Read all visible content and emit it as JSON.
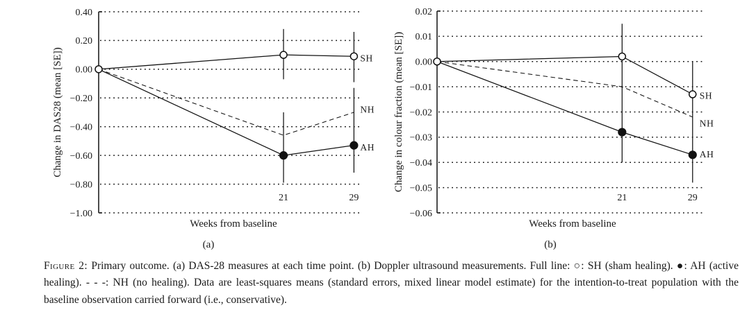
{
  "figure": {
    "caption": {
      "label": "Figure 2:",
      "text": " Primary outcome. (a) DAS-28 measures at each time point. (b) Doppler ultrasound measurements. Full line: ○: SH (sham healing). ●: AH (active healing). - - -: NH (no healing). Data are least-squares means (standard errors, mixed linear model estimate) for the intention-to-treat population with the baseline observation carried forward (i.e., conservative)."
    }
  },
  "colors": {
    "ink": "#1a1a1a",
    "background": "#ffffff"
  },
  "chart_data": [
    {
      "id": "a",
      "type": "line",
      "sublabel": "(a)",
      "title": "",
      "xlabel": "Weeks from baseline",
      "ylabel": "Change in DAS28 (mean [SE])",
      "xlim": [
        0,
        29.6
      ],
      "ylim": [
        -1.0,
        0.4
      ],
      "grid": "dotted-horizontal",
      "legend_position": "right-of-last-point",
      "x_ticks": [
        {
          "value": 21,
          "label": "21"
        },
        {
          "value": 29,
          "label": "29"
        }
      ],
      "y_ticks": [
        {
          "value": 0.4,
          "label": "0.40"
        },
        {
          "value": 0.2,
          "label": "0.20"
        },
        {
          "value": 0.0,
          "label": "0.00"
        },
        {
          "value": -0.2,
          "label": "−0.20"
        },
        {
          "value": -0.4,
          "label": "−0.40"
        },
        {
          "value": -0.6,
          "label": "−0.60"
        },
        {
          "value": -0.8,
          "label": "−0.80"
        },
        {
          "value": -1.0,
          "label": "−1.00"
        }
      ],
      "series": [
        {
          "name": "SH",
          "label": "SH",
          "description": "sham healing",
          "line": "solid",
          "marker": "open-circle",
          "markers_at": [
            0,
            21,
            29
          ],
          "x": [
            0,
            21,
            29
          ],
          "y": [
            0.0,
            0.1,
            0.09
          ]
        },
        {
          "name": "NH",
          "label": "NH",
          "description": "no healing",
          "line": "dashed",
          "marker": "none",
          "markers_at": [],
          "x": [
            0,
            21,
            29
          ],
          "y": [
            0.0,
            -0.46,
            -0.3
          ]
        },
        {
          "name": "AH",
          "label": "AH",
          "description": "active healing",
          "line": "solid",
          "marker": "filled-circle",
          "markers_at": [
            21,
            29
          ],
          "x": [
            0,
            21,
            29
          ],
          "y": [
            0.0,
            -0.6,
            -0.53
          ]
        }
      ],
      "error_segments": [
        {
          "x": 21,
          "from": 0.28,
          "to": -0.07
        },
        {
          "x": 21,
          "from": -0.3,
          "to": -0.79
        },
        {
          "x": 29,
          "from": 0.26,
          "to": -0.09
        },
        {
          "x": 29,
          "from": -0.13,
          "to": -0.72
        }
      ]
    },
    {
      "id": "b",
      "type": "line",
      "sublabel": "(b)",
      "title": "",
      "xlabel": "Weeks from baseline",
      "ylabel": "Change in colour fraction (mean [SE])",
      "xlim": [
        0,
        30.2
      ],
      "ylim": [
        -0.06,
        0.02
      ],
      "grid": "dotted-horizontal",
      "legend_position": "right-of-last-point",
      "x_ticks": [
        {
          "value": 21,
          "label": "21"
        },
        {
          "value": 29,
          "label": "29"
        }
      ],
      "y_ticks": [
        {
          "value": 0.02,
          "label": "0.02"
        },
        {
          "value": 0.01,
          "label": "0.01"
        },
        {
          "value": 0.0,
          "label": "0.00"
        },
        {
          "value": -0.01,
          "label": "−0.01"
        },
        {
          "value": -0.02,
          "label": "−0.02"
        },
        {
          "value": -0.03,
          "label": "−0.03"
        },
        {
          "value": -0.04,
          "label": "−0.04"
        },
        {
          "value": -0.05,
          "label": "−0.05"
        },
        {
          "value": -0.06,
          "label": "−0.06"
        }
      ],
      "series": [
        {
          "name": "SH",
          "label": "SH",
          "description": "sham healing",
          "line": "solid",
          "marker": "open-circle",
          "markers_at": [
            0,
            21,
            29
          ],
          "x": [
            0,
            21,
            29
          ],
          "y": [
            0.0,
            0.002,
            -0.013
          ]
        },
        {
          "name": "NH",
          "label": "NH",
          "description": "no healing",
          "line": "dashed",
          "marker": "none",
          "markers_at": [],
          "x": [
            0,
            21,
            29
          ],
          "y": [
            0.0,
            -0.01,
            -0.022
          ]
        },
        {
          "name": "AH",
          "label": "AH",
          "description": "active healing",
          "line": "solid",
          "marker": "filled-circle",
          "markers_at": [
            21,
            29
          ],
          "x": [
            0,
            21,
            29
          ],
          "y": [
            0.0,
            -0.028,
            -0.037
          ]
        }
      ],
      "error_segments": [
        {
          "x": 21,
          "from": 0.015,
          "to": -0.04
        },
        {
          "x": 29,
          "from": 0.0,
          "to": -0.048
        }
      ]
    }
  ]
}
